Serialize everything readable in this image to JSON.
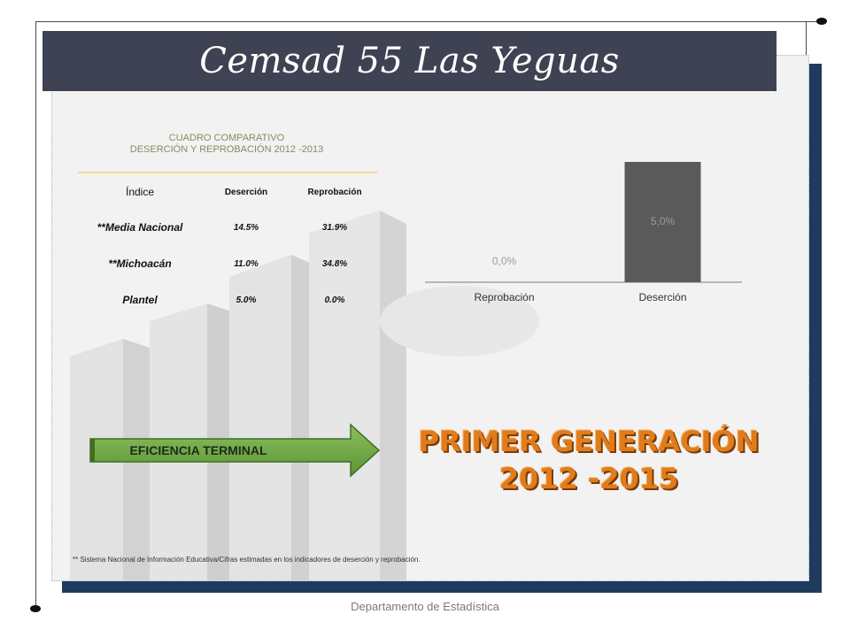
{
  "slide": {
    "title": "Cemsad 55 Las Yeguas",
    "footer": "Departamento de Estadística",
    "footnote": "** Sistema Nacional de Información Educativa/Cifras estimadas en los indicadores de deserción y reprobación."
  },
  "table": {
    "heading_line1": "CUADRO COMPARATIVO",
    "heading_line2": "DESERCIÓN Y REPROBACIÓN  2012 -2013",
    "headers": [
      "Índice",
      "Deserción",
      "Reprobación"
    ],
    "rows": [
      [
        "**Media Nacional",
        "14.5%",
        "31.9%"
      ],
      [
        "**Michoacán",
        "11.0%",
        "34.8%"
      ],
      [
        "Plantel",
        "5.0%",
        "0.0%"
      ]
    ]
  },
  "chart_data": {
    "type": "bar",
    "categories": [
      "Reprobación",
      "Deserción"
    ],
    "values": [
      0.0,
      5.0
    ],
    "data_labels": [
      "0,0%",
      "5,0%"
    ],
    "title": "",
    "xlabel": "",
    "ylabel": "",
    "ylim": [
      0,
      5
    ],
    "grid": false,
    "bar_color": "#5a5a5a",
    "label_color": "#9a9a9a"
  },
  "arrow": {
    "label": "EFICIENCIA TERMINAL",
    "color": "#6aa040"
  },
  "generation": {
    "line1": "PRIMER GENERACIÓN",
    "line2": "2012 -2015",
    "color": "#e07c1c"
  }
}
